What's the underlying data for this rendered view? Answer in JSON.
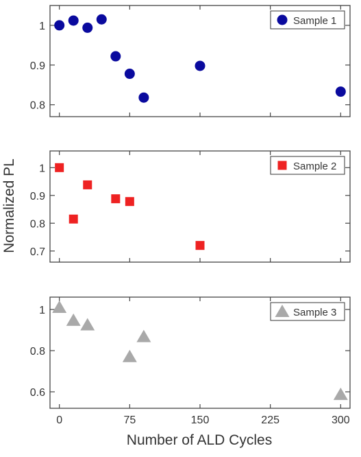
{
  "figure": {
    "ylabel": "Normalized PL",
    "xlabel": "Number of ALD Cycles"
  },
  "chart_data": [
    {
      "type": "scatter",
      "marker": "circle",
      "color": "#0a0a9e",
      "legend": {
        "label": "Sample 1",
        "placement": "top-right"
      },
      "ylim": [
        0.77,
        1.05
      ],
      "yticks": [
        1,
        0.9,
        0.8
      ],
      "yticklabels": [
        "1",
        "0.9",
        "0.8"
      ],
      "xlim": [
        -10,
        310
      ],
      "series": [
        {
          "name": "Sample 1",
          "x": [
            0,
            15,
            30,
            45,
            60,
            75,
            90,
            150,
            300
          ],
          "y": [
            1.0,
            1.012,
            0.994,
            1.015,
            0.922,
            0.878,
            0.818,
            0.898,
            0.833
          ]
        }
      ]
    },
    {
      "type": "scatter",
      "marker": "square",
      "color": "#ee2222",
      "legend": {
        "label": "Sample 2",
        "placement": "top-right"
      },
      "ylim": [
        0.66,
        1.06
      ],
      "yticks": [
        1,
        0.9,
        0.8,
        0.7
      ],
      "yticklabels": [
        "1",
        "0.9",
        "0.8",
        "0.7"
      ],
      "xlim": [
        -10,
        310
      ],
      "series": [
        {
          "name": "Sample 2",
          "x": [
            0,
            15,
            30,
            60,
            75,
            150
          ],
          "y": [
            1.0,
            0.815,
            0.938,
            0.888,
            0.878,
            0.72
          ]
        }
      ]
    },
    {
      "type": "scatter",
      "marker": "triangle",
      "color": "#a9a9a9",
      "legend": {
        "label": "Sample 3",
        "placement": "top-right"
      },
      "ylim": [
        0.52,
        1.06
      ],
      "yticks": [
        1,
        0.8,
        0.6
      ],
      "yticklabels": [
        "1",
        "0.8",
        "0.6"
      ],
      "xlim": [
        -10,
        310
      ],
      "xticks": [
        0,
        75,
        150,
        225,
        300
      ],
      "xticklabels": [
        "0",
        "75",
        "150",
        "225",
        "300"
      ],
      "series": [
        {
          "name": "Sample 3",
          "x": [
            0,
            15,
            30,
            75,
            90,
            300
          ],
          "y": [
            1.01,
            0.947,
            0.925,
            0.771,
            0.868,
            0.587
          ]
        }
      ]
    }
  ]
}
